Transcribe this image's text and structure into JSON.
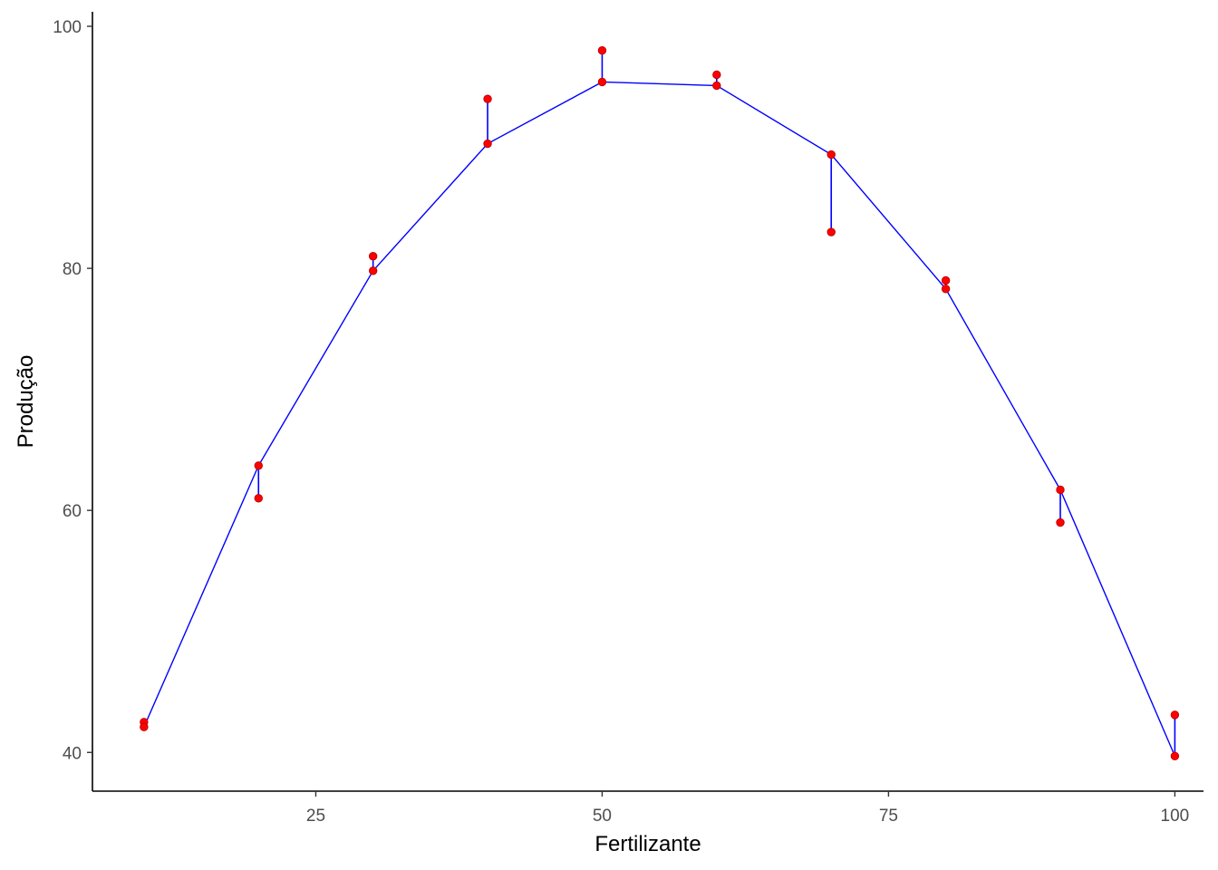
{
  "chart_data": {
    "type": "scatter",
    "title": "",
    "xlabel": "Fertilizante",
    "ylabel": "Produção",
    "xlim": [
      5.5,
      102.5
    ],
    "ylim": [
      36.8,
      101.2
    ],
    "x_ticks": [
      25,
      50,
      75,
      100
    ],
    "y_ticks": [
      40,
      60,
      80,
      100
    ],
    "grid": false,
    "legend": "none",
    "colors": {
      "points": "#ff0000",
      "point_outline": "#c00000",
      "fit": "#0000ff",
      "axis": "#000000",
      "tick_text": "#4d4d4d"
    },
    "x": [
      10,
      20,
      30,
      40,
      50,
      60,
      70,
      80,
      90,
      100
    ],
    "observed": [
      42.5,
      61.0,
      81.0,
      94.0,
      98.0,
      96.0,
      83.0,
      79.0,
      59.0,
      43.1
    ],
    "fitted": [
      42.1,
      63.7,
      79.8,
      90.3,
      95.4,
      95.1,
      89.4,
      78.3,
      61.7,
      39.7
    ]
  }
}
